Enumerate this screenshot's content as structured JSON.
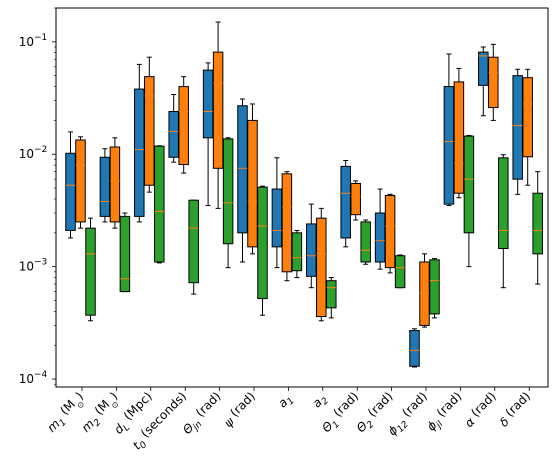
{
  "chart_data": {
    "type": "box",
    "y_scale": "log",
    "ylim": [
      8.5e-05,
      0.2
    ],
    "y_ticks": [
      {
        "value": 0.0001,
        "label_base": "10",
        "label_exp": "−4"
      },
      {
        "value": 0.001,
        "label_base": "10",
        "label_exp": "−3"
      },
      {
        "value": 0.01,
        "label_base": "10",
        "label_exp": "−2"
      },
      {
        "value": 0.1,
        "label_base": "10",
        "label_exp": "−1"
      }
    ],
    "categories": [
      {
        "main": "m",
        "sub": "1",
        "unit": " (M",
        "unit_sub": "⊙",
        "unit_end": ")"
      },
      {
        "main": "m",
        "sub": "2",
        "unit": " (M",
        "unit_sub": "⊙",
        "unit_end": ")"
      },
      {
        "main": "d",
        "sub": "L",
        "unit": " (Mpc)",
        "unit_sub": "",
        "unit_end": ""
      },
      {
        "main": "t",
        "sub": "0",
        "unit": " (seconds)",
        "unit_sub": "",
        "unit_end": ""
      },
      {
        "main": "Θ",
        "sub": "jn",
        "unit": " (rad)",
        "unit_sub": "",
        "unit_end": ""
      },
      {
        "main": "ψ",
        "sub": "",
        "unit": " (rad)",
        "unit_sub": "",
        "unit_end": ""
      },
      {
        "main": "a",
        "sub": "1",
        "unit": "",
        "unit_sub": "",
        "unit_end": ""
      },
      {
        "main": "a",
        "sub": "2",
        "unit": "",
        "unit_sub": "",
        "unit_end": ""
      },
      {
        "main": "Θ",
        "sub": "1",
        "unit": " (rad)",
        "unit_sub": "",
        "unit_end": ""
      },
      {
        "main": "Θ",
        "sub": "2",
        "unit": " (rad)",
        "unit_sub": "",
        "unit_end": ""
      },
      {
        "main": "ϕ",
        "sub": "12",
        "unit": " (rad)",
        "unit_sub": "",
        "unit_end": ""
      },
      {
        "main": "ϕ",
        "sub": "jl",
        "unit": " (rad)",
        "unit_sub": "",
        "unit_end": ""
      },
      {
        "main": "α",
        "sub": "",
        "unit": " (rad)",
        "unit_sub": "",
        "unit_end": ""
      },
      {
        "main": "δ",
        "sub": "",
        "unit": " (rad)",
        "unit_sub": "",
        "unit_end": ""
      }
    ],
    "colors": {
      "blue": "#1f77b4",
      "orange": "#ff7f0e",
      "green": "#2ca02c",
      "median": "#ff7f0e"
    },
    "series": [
      {
        "color": "#1f77b4",
        "boxes": [
          {
            "wlo": 0.0018,
            "q1": 0.0021,
            "med": 0.0053,
            "q3": 0.0102,
            "whi": 0.0158
          },
          {
            "wlo": 0.0025,
            "q1": 0.0028,
            "med": 0.0038,
            "q3": 0.0094,
            "whi": 0.0112
          },
          {
            "wlo": 0.0025,
            "q1": 0.0028,
            "med": 0.011,
            "q3": 0.038,
            "whi": 0.063
          },
          {
            "wlo": 0.0085,
            "q1": 0.0094,
            "med": 0.016,
            "q3": 0.024,
            "whi": 0.034
          },
          {
            "wlo": 0.0035,
            "q1": 0.014,
            "med": 0.024,
            "q3": 0.056,
            "whi": 0.065
          },
          {
            "wlo": 0.0011,
            "q1": 0.002,
            "med": 0.0075,
            "q3": 0.027,
            "whi": 0.031
          },
          {
            "wlo": 0.00098,
            "q1": 0.0015,
            "med": 0.0021,
            "q3": 0.0049,
            "whi": 0.0093
          },
          {
            "wlo": 0.00065,
            "q1": 0.00082,
            "med": 0.00125,
            "q3": 0.0024,
            "whi": 0.0036
          },
          {
            "wlo": 0.0015,
            "q1": 0.0018,
            "med": 0.0045,
            "q3": 0.0078,
            "whi": 0.0088
          },
          {
            "wlo": 0.00095,
            "q1": 0.0011,
            "med": 0.0017,
            "q3": 0.003,
            "whi": 0.0049
          },
          {
            "wlo": 0.000128,
            "q1": 0.00013,
            "med": 0.00018,
            "q3": 0.00027,
            "whi": 0.00028
          },
          {
            "wlo": 0.0035,
            "q1": 0.0036,
            "med": 0.013,
            "q3": 0.04,
            "whi": 0.078
          },
          {
            "wlo": 0.022,
            "q1": 0.041,
            "med": 0.075,
            "q3": 0.081,
            "whi": 0.09
          },
          {
            "wlo": 0.0044,
            "q1": 0.006,
            "med": 0.018,
            "q3": 0.05,
            "whi": 0.057
          }
        ]
      },
      {
        "color": "#ff7f0e",
        "boxes": [
          {
            "wlo": 0.0022,
            "q1": 0.0025,
            "med": 0.008,
            "q3": 0.0134,
            "whi": 0.0143
          },
          {
            "wlo": 0.0022,
            "q1": 0.0025,
            "med": 0.0058,
            "q3": 0.0116,
            "whi": 0.014
          },
          {
            "wlo": 0.0046,
            "q1": 0.0053,
            "med": 0.033,
            "q3": 0.049,
            "whi": 0.073
          },
          {
            "wlo": 0.0068,
            "q1": 0.0081,
            "med": 0.024,
            "q3": 0.04,
            "whi": 0.049
          },
          {
            "wlo": 0.0033,
            "q1": 0.0075,
            "med": 0.043,
            "q3": 0.081,
            "whi": 0.15
          },
          {
            "wlo": 0.0013,
            "q1": 0.0015,
            "med": 0.0038,
            "q3": 0.02,
            "whi": 0.028
          },
          {
            "wlo": 0.00075,
            "q1": 0.0009,
            "med": 0.0034,
            "q3": 0.0067,
            "whi": 0.007
          },
          {
            "wlo": 0.00033,
            "q1": 0.00036,
            "med": 0.0013,
            "q3": 0.0027,
            "whi": 0.0033
          },
          {
            "wlo": 0.0026,
            "q1": 0.0029,
            "med": 0.0042,
            "q3": 0.0055,
            "whi": 0.0058
          },
          {
            "wlo": 0.00088,
            "q1": 0.00098,
            "med": 0.0023,
            "q3": 0.0043,
            "whi": 0.0044
          },
          {
            "wlo": 0.00029,
            "q1": 0.0003,
            "med": 0.00058,
            "q3": 0.0011,
            "whi": 0.0013
          },
          {
            "wlo": 0.0041,
            "q1": 0.0045,
            "med": 0.0083,
            "q3": 0.044,
            "whi": 0.058
          },
          {
            "wlo": 0.02,
            "q1": 0.026,
            "med": 0.053,
            "q3": 0.073,
            "whi": 0.095
          },
          {
            "wlo": 0.0053,
            "q1": 0.0095,
            "med": 0.028,
            "q3": 0.048,
            "whi": 0.057
          }
        ]
      },
      {
        "color": "#2ca02c",
        "boxes": [
          {
            "wlo": 0.00033,
            "q1": 0.00037,
            "med": 0.0013,
            "q3": 0.0022,
            "whi": 0.0027
          },
          {
            "wlo": 0.0006,
            "q1": 0.0006,
            "med": 0.00078,
            "q3": 0.0028,
            "whi": 0.003
          },
          {
            "wlo": 0.00108,
            "q1": 0.0011,
            "med": 0.0031,
            "q3": 0.0118,
            "whi": 0.0119
          },
          {
            "wlo": 0.00057,
            "q1": 0.00072,
            "med": 0.0022,
            "q3": 0.0039,
            "whi": 0.0039
          },
          {
            "wlo": 0.00098,
            "q1": 0.0016,
            "med": 0.0037,
            "q3": 0.0137,
            "whi": 0.014
          },
          {
            "wlo": 0.00037,
            "q1": 0.00052,
            "med": 0.0023,
            "q3": 0.0051,
            "whi": 0.0052
          },
          {
            "wlo": 0.0008,
            "q1": 0.00092,
            "med": 0.0012,
            "q3": 0.002,
            "whi": 0.0021
          },
          {
            "wlo": 0.00035,
            "q1": 0.00043,
            "med": 0.00065,
            "q3": 0.00075,
            "whi": 0.0008
          },
          {
            "wlo": 0.00105,
            "q1": 0.0011,
            "med": 0.0014,
            "q3": 0.0025,
            "whi": 0.0026
          },
          {
            "wlo": 0.00065,
            "q1": 0.00065,
            "med": 0.00098,
            "q3": 0.00125,
            "whi": 0.00127
          },
          {
            "wlo": 0.00035,
            "q1": 0.00038,
            "med": 0.00075,
            "q3": 0.00115,
            "whi": 0.00118
          },
          {
            "wlo": 0.001,
            "q1": 0.002,
            "med": 0.006,
            "q3": 0.0145,
            "whi": 0.0147
          },
          {
            "wlo": 0.00065,
            "q1": 0.00145,
            "med": 0.0021,
            "q3": 0.0093,
            "whi": 0.0099
          },
          {
            "wlo": 0.0007,
            "q1": 0.0013,
            "med": 0.0021,
            "q3": 0.0045,
            "whi": 0.007
          }
        ]
      }
    ]
  }
}
